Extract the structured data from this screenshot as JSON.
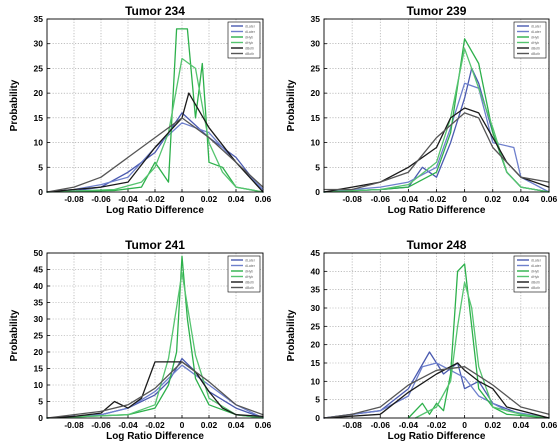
{
  "chart_data": [
    {
      "type": "line",
      "title": "Tumor 234",
      "xlabel": "Log Ratio Difference",
      "ylabel": "Probability",
      "xlim": [
        -0.1,
        0.06
      ],
      "ylim": [
        0,
        35
      ],
      "xticks": [
        -0.08,
        -0.06,
        -0.04,
        -0.02,
        0,
        0.02,
        0.04,
        0.06
      ],
      "xtick_labels": [
        "-0.08",
        "-0.06",
        "-0.04",
        "-0.02",
        "0",
        "0.02",
        "0.04",
        "0.06"
      ],
      "yticks": [
        0,
        5,
        10,
        15,
        20,
        25,
        30,
        35
      ],
      "ytick_labels": [
        "0",
        "5",
        "10",
        "15",
        "20",
        "25",
        "30",
        "35"
      ],
      "grid": true,
      "legend_position": "top-right",
      "legend_labels": [
        "dLater",
        "dLater",
        "dHyb",
        "dHyb",
        "dBoth",
        "dBoth"
      ],
      "series": [
        {
          "color": "#4a5ab0",
          "x": [
            -0.1,
            -0.08,
            -0.06,
            -0.04,
            -0.02,
            0,
            0.02,
            0.04,
            0.06
          ],
          "y": [
            0,
            0.2,
            1,
            4,
            8,
            16,
            11,
            7,
            0
          ]
        },
        {
          "color": "#6d7fcc",
          "x": [
            -0.1,
            -0.08,
            -0.06,
            -0.04,
            -0.02,
            0,
            0.02,
            0.04,
            0.06
          ],
          "y": [
            0,
            0.5,
            1.5,
            3,
            9,
            14,
            12,
            6,
            0.5
          ]
        },
        {
          "color": "#2db04b",
          "x": [
            -0.1,
            -0.05,
            -0.03,
            -0.02,
            -0.01,
            -0.004,
            0.004,
            0.01,
            0.015,
            0.02,
            0.03,
            0.04,
            0.06
          ],
          "y": [
            0,
            0.3,
            1,
            6,
            2,
            33,
            33,
            15,
            26,
            6,
            5,
            1,
            0
          ]
        },
        {
          "color": "#55c46f",
          "x": [
            -0.1,
            -0.05,
            -0.03,
            -0.02,
            -0.01,
            0,
            0.01,
            0.02,
            0.03,
            0.04,
            0.06
          ],
          "y": [
            0,
            0.5,
            2,
            5,
            12,
            27,
            25,
            10,
            4,
            1,
            0
          ]
        },
        {
          "color": "#1a1a1a",
          "x": [
            -0.1,
            -0.08,
            -0.06,
            -0.04,
            -0.02,
            0,
            0.005,
            0.02,
            0.04,
            0.06
          ],
          "y": [
            0,
            0.5,
            1,
            2,
            9,
            15,
            20,
            13,
            6,
            0
          ]
        },
        {
          "color": "#555555",
          "x": [
            -0.1,
            -0.08,
            -0.06,
            -0.04,
            -0.02,
            0,
            0.02,
            0.04,
            0.06
          ],
          "y": [
            0,
            1,
            3,
            7,
            11,
            15,
            11,
            6,
            1
          ]
        }
      ]
    },
    {
      "type": "line",
      "title": "Tumor 239",
      "xlabel": "Log Ratio Difference",
      "ylabel": "Probability",
      "xlim": [
        -0.1,
        0.06
      ],
      "ylim": [
        0,
        35
      ],
      "xticks": [
        -0.08,
        -0.06,
        -0.04,
        -0.02,
        0,
        0.02,
        0.04,
        0.06
      ],
      "xtick_labels": [
        "-0.08",
        "-0.06",
        "-0.04",
        "-0.02",
        "0",
        "0.02",
        "0.04",
        "0.06"
      ],
      "yticks": [
        0,
        5,
        10,
        15,
        20,
        25,
        30,
        35
      ],
      "ytick_labels": [
        "0",
        "5",
        "10",
        "15",
        "20",
        "25",
        "30",
        "35"
      ],
      "grid": true,
      "legend_position": "top-right",
      "legend_labels": [
        "dLater",
        "dLater",
        "dHyb",
        "dHyb",
        "dBoth",
        "dBoth"
      ],
      "series": [
        {
          "color": "#4a5ab0",
          "x": [
            -0.1,
            -0.06,
            -0.04,
            -0.03,
            -0.02,
            -0.01,
            0,
            0.005,
            0.01,
            0.02,
            0.03,
            0.04,
            0.06
          ],
          "y": [
            0,
            0.5,
            1,
            5,
            3,
            10,
            19,
            25,
            22,
            12,
            4,
            1,
            0
          ]
        },
        {
          "color": "#6d7fcc",
          "x": [
            -0.1,
            -0.06,
            -0.04,
            -0.02,
            -0.01,
            0,
            0.01,
            0.02,
            0.035,
            0.04,
            0.06
          ],
          "y": [
            0,
            1,
            2,
            5,
            13,
            22,
            21,
            10,
            9,
            3,
            0
          ]
        },
        {
          "color": "#2db04b",
          "x": [
            -0.1,
            -0.06,
            -0.04,
            -0.02,
            -0.01,
            0,
            0.01,
            0.02,
            0.03,
            0.04,
            0.06
          ],
          "y": [
            0,
            0.5,
            1,
            4,
            12,
            31,
            26,
            12,
            4,
            1,
            0
          ]
        },
        {
          "color": "#55c46f",
          "x": [
            -0.1,
            -0.06,
            -0.04,
            -0.02,
            -0.01,
            0,
            0.01,
            0.02,
            0.03,
            0.04,
            0.06
          ],
          "y": [
            0,
            0.5,
            1.5,
            6,
            15,
            29,
            21,
            13,
            4,
            1,
            0
          ]
        },
        {
          "color": "#1a1a1a",
          "x": [
            -0.1,
            -0.08,
            -0.06,
            -0.04,
            -0.02,
            -0.01,
            0,
            0.01,
            0.02,
            0.03,
            0.04,
            0.06
          ],
          "y": [
            0,
            1,
            2,
            5,
            9,
            15,
            17,
            16,
            11,
            6,
            3,
            1
          ]
        },
        {
          "color": "#555555",
          "x": [
            -0.1,
            -0.08,
            -0.06,
            -0.04,
            -0.02,
            0,
            0.01,
            0.02,
            0.04,
            0.06
          ],
          "y": [
            0.5,
            0.5,
            2,
            4,
            11,
            16,
            15,
            9,
            3,
            2
          ]
        }
      ]
    },
    {
      "type": "line",
      "title": "Tumor 241",
      "xlabel": "Log Ratio Difference",
      "ylabel": "Probability",
      "xlim": [
        -0.1,
        0.06
      ],
      "ylim": [
        0,
        50
      ],
      "xticks": [
        -0.08,
        -0.06,
        -0.04,
        -0.02,
        0,
        0.02,
        0.04,
        0.06
      ],
      "xtick_labels": [
        "-0.08",
        "-0.06",
        "-0.04",
        "-0.02",
        "0",
        "0.02",
        "0.04",
        "0.06"
      ],
      "yticks": [
        0,
        5,
        10,
        15,
        20,
        25,
        30,
        35,
        40,
        45,
        50
      ],
      "ytick_labels": [
        "0",
        "5",
        "10",
        "15",
        "20",
        "25",
        "30",
        "35",
        "40",
        "45",
        "50"
      ],
      "grid": true,
      "legend_position": "top-right",
      "legend_labels": [
        "dLater",
        "dLater",
        "dHyb",
        "dHyb",
        "dBoth",
        "dBoth"
      ],
      "series": [
        {
          "color": "#4a5ab0",
          "x": [
            -0.1,
            -0.06,
            -0.04,
            -0.02,
            -0.01,
            0,
            0.01,
            0.02,
            0.04,
            0.06
          ],
          "y": [
            0,
            1,
            3,
            7,
            11,
            18,
            14,
            8,
            3,
            0
          ]
        },
        {
          "color": "#6d7fcc",
          "x": [
            -0.1,
            -0.06,
            -0.04,
            -0.02,
            0,
            0.02,
            0.04,
            0.06
          ],
          "y": [
            0,
            1,
            3,
            8,
            16,
            10,
            4,
            0
          ]
        },
        {
          "color": "#2db04b",
          "x": [
            -0.1,
            -0.04,
            -0.02,
            -0.01,
            -0.004,
            0,
            0.004,
            0.01,
            0.02,
            0.04,
            0.06
          ],
          "y": [
            0,
            1,
            3,
            10,
            20,
            49,
            30,
            12,
            4,
            1,
            0
          ]
        },
        {
          "color": "#55c46f",
          "x": [
            -0.1,
            -0.04,
            -0.02,
            -0.01,
            0,
            0.01,
            0.02,
            0.04,
            0.06
          ],
          "y": [
            0,
            1,
            4,
            18,
            44,
            19,
            6,
            1,
            0
          ]
        },
        {
          "color": "#1a1a1a",
          "x": [
            -0.1,
            -0.08,
            -0.06,
            -0.05,
            -0.04,
            -0.03,
            -0.02,
            -0.01,
            0,
            0.01,
            0.02,
            0.03,
            0.04,
            0.06
          ],
          "y": [
            0,
            0.5,
            1.5,
            5,
            3,
            6,
            17,
            17,
            17,
            14,
            8,
            3,
            1,
            0.5
          ]
        },
        {
          "color": "#555555",
          "x": [
            -0.1,
            -0.06,
            -0.04,
            -0.02,
            0,
            0.02,
            0.04,
            0.06
          ],
          "y": [
            0,
            2,
            4,
            9,
            17,
            11,
            4,
            1
          ]
        }
      ]
    },
    {
      "type": "line",
      "title": "Tumor 248",
      "xlabel": "Log Ratio Difference",
      "ylabel": "Probability",
      "xlim": [
        -0.1,
        0.06
      ],
      "ylim": [
        0,
        45
      ],
      "xticks": [
        -0.08,
        -0.06,
        -0.04,
        -0.02,
        0,
        0.02,
        0.04,
        0.06
      ],
      "xtick_labels": [
        "-0.08",
        "-0.06",
        "-0.04",
        "-0.02",
        "0",
        "0.02",
        "0.04",
        "0.06"
      ],
      "yticks": [
        0,
        5,
        10,
        15,
        20,
        25,
        30,
        35,
        40,
        45
      ],
      "ytick_labels": [
        "0",
        "5",
        "10",
        "15",
        "20",
        "25",
        "30",
        "35",
        "40",
        "45"
      ],
      "grid": true,
      "legend_position": "top-right",
      "legend_labels": [
        "dLater",
        "dLater",
        "dHyb",
        "dHyb",
        "dBoth",
        "dBoth"
      ],
      "series": [
        {
          "color": "#4a5ab0",
          "x": [
            -0.1,
            -0.06,
            -0.04,
            -0.025,
            -0.015,
            -0.005,
            0,
            0.01,
            0.02,
            0.04,
            0.06
          ],
          "y": [
            0,
            2,
            8,
            18,
            12,
            15,
            8,
            10,
            4,
            1,
            0
          ]
        },
        {
          "color": "#6d7fcc",
          "x": [
            -0.1,
            -0.06,
            -0.04,
            -0.03,
            -0.02,
            -0.01,
            0,
            0.01,
            0.03,
            0.06
          ],
          "y": [
            0,
            2,
            6,
            14,
            15,
            13,
            11,
            6,
            2,
            0
          ]
        },
        {
          "color": "#2db04b",
          "x": [
            -0.04,
            -0.03,
            -0.025,
            -0.02,
            -0.015,
            -0.01,
            -0.005,
            0,
            0.005,
            0.01,
            0.02,
            0.03,
            0.06
          ],
          "y": [
            0,
            4,
            1,
            4,
            2,
            12,
            40,
            42,
            25,
            8,
            3,
            1,
            0
          ]
        },
        {
          "color": "#55c46f",
          "x": [
            -0.035,
            -0.02,
            -0.01,
            -0.005,
            0,
            0.005,
            0.01,
            0.02,
            0.04,
            0.06
          ],
          "y": [
            0,
            3,
            10,
            25,
            37,
            30,
            14,
            3,
            1,
            0
          ]
        },
        {
          "color": "#1a1a1a",
          "x": [
            -0.1,
            -0.06,
            -0.04,
            -0.02,
            -0.005,
            0,
            0.01,
            0.02,
            0.03,
            0.06
          ],
          "y": [
            0,
            1,
            7,
            12,
            15,
            13,
            10,
            8,
            3,
            0
          ]
        },
        {
          "color": "#555555",
          "x": [
            -0.1,
            -0.08,
            -0.06,
            -0.04,
            -0.02,
            0,
            0.02,
            0.04,
            0.06
          ],
          "y": [
            0,
            1,
            3,
            9,
            13,
            14,
            9,
            3,
            1
          ]
        }
      ]
    }
  ]
}
